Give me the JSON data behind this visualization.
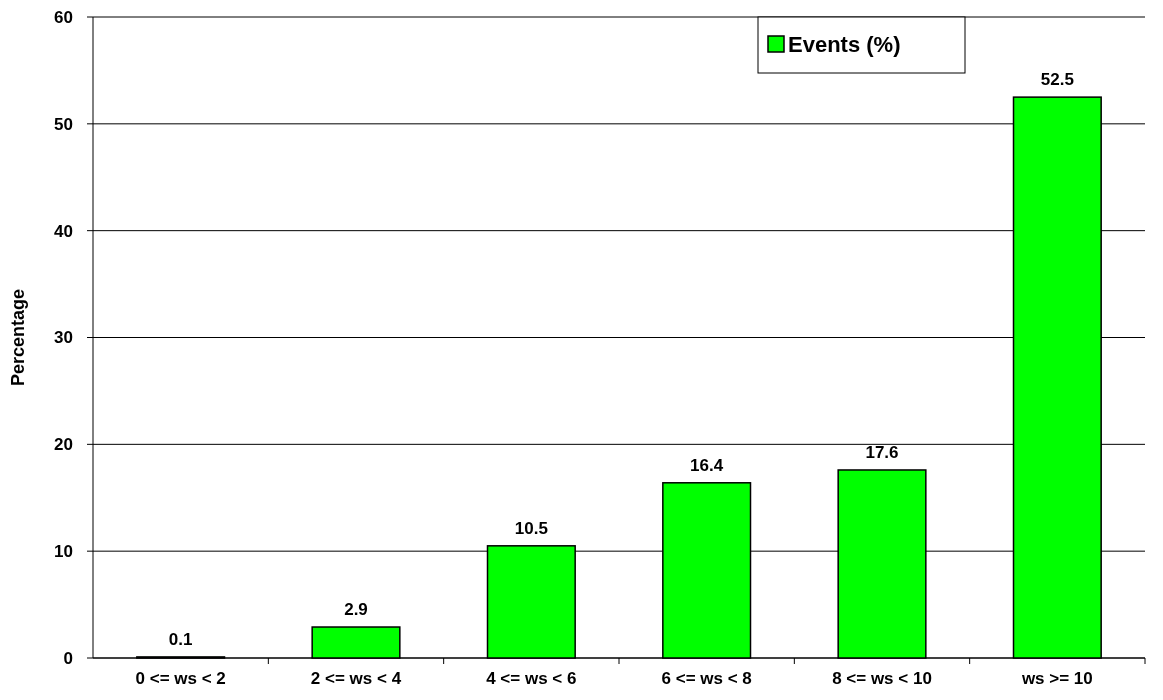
{
  "chart_data": {
    "type": "bar",
    "categories": [
      "0 <= ws < 2",
      "2 <= ws < 4",
      "4 <= ws < 6",
      "6 <= ws < 8",
      "8 <= ws < 10",
      "ws >= 10"
    ],
    "series": [
      {
        "name": "Events (%)",
        "color": "#00ff00",
        "values": [
          0.1,
          2.9,
          10.5,
          16.4,
          17.6,
          52.5
        ]
      }
    ],
    "ylabel": "Percentage",
    "ylim": [
      0,
      60
    ],
    "yticks": [
      0,
      10,
      20,
      30,
      40,
      50,
      60
    ],
    "grid": "y",
    "legend": "top right",
    "data_labels": true
  }
}
